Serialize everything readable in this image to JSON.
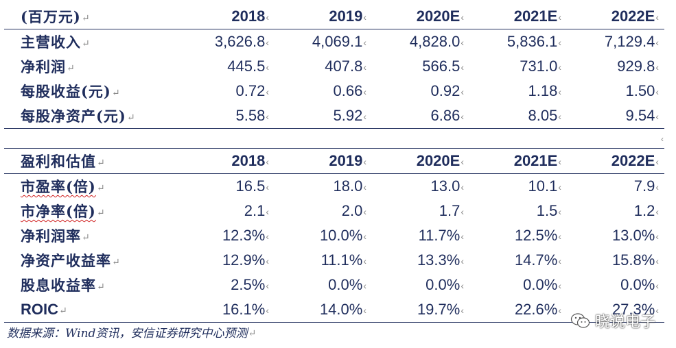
{
  "table1": {
    "header": [
      "(百万元)",
      "2018",
      "2019",
      "2020E",
      "2021E",
      "2022E"
    ],
    "rows": [
      [
        "主营收入",
        "3,626.8",
        "4,069.1",
        "4,828.0",
        "5,836.1",
        "7,129.4"
      ],
      [
        "净利润",
        "445.5",
        "407.8",
        "566.5",
        "731.0",
        "929.8"
      ],
      [
        "每股收益(元)",
        "0.72",
        "0.66",
        "0.92",
        "1.18",
        "1.50"
      ],
      [
        "每股净资产(元)",
        "5.58",
        "5.92",
        "6.86",
        "8.05",
        "9.54"
      ]
    ]
  },
  "table2": {
    "header": [
      "盈利和估值",
      "2018",
      "2019",
      "2020E",
      "2021E",
      "2022E"
    ],
    "rows": [
      [
        "市盈率(倍)",
        "16.5",
        "18.0",
        "13.0",
        "10.1",
        "7.9"
      ],
      [
        "市净率(倍)",
        "2.1",
        "2.0",
        "1.7",
        "1.5",
        "1.2"
      ],
      [
        "净利润率",
        "12.3%",
        "10.0%",
        "11.7%",
        "12.5%",
        "13.0%"
      ],
      [
        "净资产收益率",
        "12.9%",
        "11.1%",
        "13.3%",
        "14.7%",
        "15.8%"
      ],
      [
        "股息收益率",
        "2.5%",
        "0.0%",
        "0.0%",
        "0.0%",
        "0.0%"
      ],
      [
        "ROIC",
        "16.1%",
        "14.0%",
        "19.7%",
        "22.6%",
        "27.3%"
      ]
    ]
  },
  "footer": "数据来源：Wind资讯，安信证券研究中心预测",
  "watermark": "晓说电子",
  "marks": {
    "paragraph": "↵",
    "cell": "‹"
  }
}
